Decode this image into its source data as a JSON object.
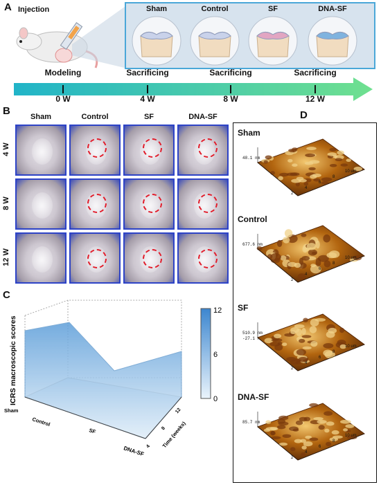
{
  "panels": {
    "a": "A",
    "b": "B",
    "c": "C",
    "d": "D"
  },
  "panel_a": {
    "injection_label": "Injection",
    "groups": [
      "Sham",
      "Control",
      "SF",
      "DNA-SF"
    ],
    "timeline_events": [
      {
        "label": "Modeling",
        "time": "0 W"
      },
      {
        "label": "Sacrificing",
        "time": "4 W"
      },
      {
        "label": "Sacrificing",
        "time": "8 W"
      },
      {
        "label": "Sacrificing",
        "time": "12 W"
      }
    ]
  },
  "panel_b": {
    "columns": [
      "Sham",
      "Control",
      "SF",
      "DNA-SF"
    ],
    "rows": [
      "4 W",
      "8 W",
      "12 W"
    ]
  },
  "panel_c": {
    "chart_data": {
      "type": "area",
      "ylabel": "ICRS macroscopic scores",
      "categories": [
        "Sham",
        "Control",
        "SF",
        "DNA-SF"
      ],
      "time_axis_label": "Time (weeks)",
      "time_ticks": [
        "4",
        "8",
        "12"
      ],
      "colorbar": {
        "min": 0,
        "max": 12,
        "ticks": [
          "12",
          "6",
          "0"
        ]
      }
    }
  },
  "panel_d": {
    "groups": [
      {
        "name": "Sham",
        "zmax": "48.1 nm"
      },
      {
        "name": "Control",
        "zmax": "677.6 nm"
      },
      {
        "name": "SF",
        "zmax": "510.9 nm",
        "zmin": "-27.1 nm"
      },
      {
        "name": "DNA-SF",
        "zmax": "85.7 nm"
      }
    ],
    "axis_ticks": [
      "2",
      "4",
      "6",
      "8",
      "10 um"
    ]
  }
}
